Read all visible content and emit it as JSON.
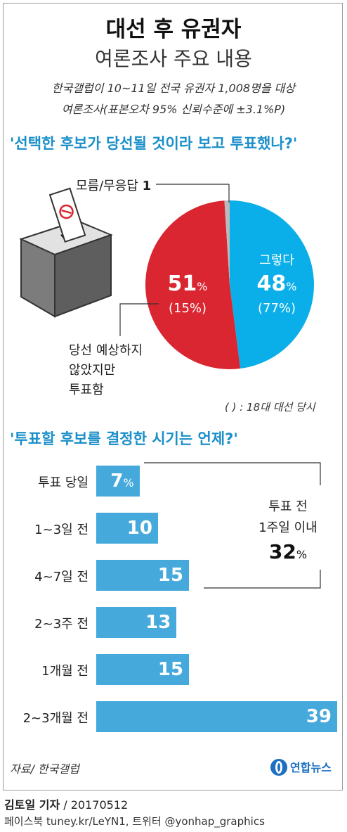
{
  "header": {
    "title": "대선 후 유권자",
    "subtitle": "여론조사 주요 내용",
    "note_line1": "한국갤럽이 10~11일 전국 유권자 1,008명을 대상",
    "note_line2": "여론조사(표본오차 95% 신뢰수준에 ±3.1%P)"
  },
  "colors": {
    "accent": "#1a8fc9",
    "pie_blue": "#0aaee8",
    "pie_red": "#d92630",
    "pie_gray": "#bbbbbb",
    "bar": "#46a9dc"
  },
  "chart_data": [
    {
      "type": "pie",
      "title": "'선택한 후보가 당선될 것이라 보고 투표했나?'",
      "slices": [
        {
          "label": "그렇다",
          "value": 48,
          "value_label": "48%",
          "previous": 77,
          "previous_label": "(77%)"
        },
        {
          "label": "당선 예상하지 않았지만 투표함",
          "value": 51,
          "value_label": "51%",
          "previous": 15,
          "previous_label": "(15%)"
        },
        {
          "label": "모름/무응답",
          "value": 1,
          "value_label": "1"
        }
      ],
      "label_lines": {
        "unknown": "모름/무응답",
        "no_1": "당선 예상하지",
        "no_2": "않았지만",
        "no_3": "투표함"
      },
      "footnote": "( ) : 18대 대선 당시"
    },
    {
      "type": "bar",
      "title": "'투표할 후보를 결정한 시기는 언제?'",
      "unit": "%",
      "categories": [
        "투표 당일",
        "1~3일 전",
        "4~7일 전",
        "2~3주 전",
        "1개월 전",
        "2~3개월 전"
      ],
      "values": [
        7,
        10,
        15,
        13,
        15,
        39
      ],
      "value_labels": [
        "7",
        "10",
        "15",
        "13",
        "15",
        "39"
      ],
      "bracket_annotation": {
        "line1": "투표 전",
        "line2": "1주일 이내",
        "value": "32",
        "unit": "%"
      }
    }
  ],
  "footer": {
    "source": "자료/ 한국갤럽",
    "logo_text": "연합뉴스",
    "credit_line1_bold": "김토일 기자",
    "credit_line1_rest": " / 20170512",
    "credit_line2": "페이스북 tuney.kr/LeYN1, 트위터 @yonhap_graphics"
  }
}
